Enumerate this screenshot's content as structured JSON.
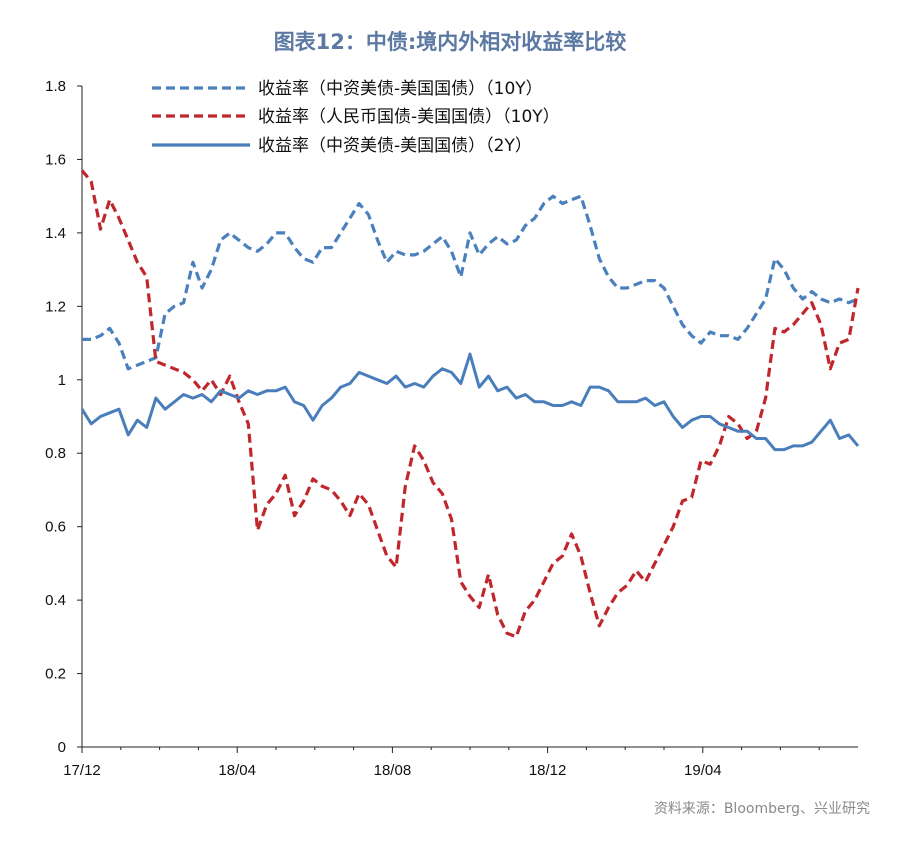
{
  "title": "图表12：中债:境内外相对收益率比较",
  "source": "资料来源：Bloomberg、兴业研究",
  "chart_data": {
    "type": "line",
    "xlabel": "",
    "ylabel": "",
    "ylim": [
      0,
      1.8
    ],
    "yticks": [
      "0",
      "0.2",
      "0.4",
      "0.6",
      "0.8",
      "1",
      "1.2",
      "1.4",
      "1.6",
      "1.8"
    ],
    "xticks": [
      "17/12",
      "18/04",
      "18/08",
      "18/12",
      "19/04"
    ],
    "grid": false,
    "legend_position": "top-left",
    "x_start": "2017-12",
    "x_end": "2019-08",
    "series": [
      {
        "name": "收益率（中资美债-美国国债）（10Y）",
        "color": "#4a80bd",
        "style": "dashed",
        "values": [
          1.11,
          1.11,
          1.12,
          1.14,
          1.1,
          1.03,
          1.04,
          1.05,
          1.06,
          1.18,
          1.2,
          1.21,
          1.32,
          1.25,
          1.3,
          1.38,
          1.4,
          1.38,
          1.36,
          1.35,
          1.37,
          1.4,
          1.4,
          1.36,
          1.33,
          1.32,
          1.36,
          1.36,
          1.4,
          1.44,
          1.48,
          1.45,
          1.38,
          1.32,
          1.35,
          1.34,
          1.34,
          1.35,
          1.37,
          1.39,
          1.35,
          1.28,
          1.4,
          1.34,
          1.37,
          1.39,
          1.37,
          1.38,
          1.42,
          1.44,
          1.48,
          1.5,
          1.48,
          1.49,
          1.5,
          1.42,
          1.33,
          1.28,
          1.25,
          1.25,
          1.26,
          1.27,
          1.27,
          1.25,
          1.2,
          1.15,
          1.12,
          1.1,
          1.13,
          1.12,
          1.12,
          1.11,
          1.14,
          1.18,
          1.22,
          1.33,
          1.3,
          1.25,
          1.22,
          1.24,
          1.22,
          1.21,
          1.22,
          1.21,
          1.22
        ]
      },
      {
        "name": "收益率（人民币国债-美国国债）（10Y）",
        "color": "#c0272d",
        "style": "dashed",
        "values": [
          1.57,
          1.54,
          1.41,
          1.49,
          1.44,
          1.38,
          1.32,
          1.28,
          1.05,
          1.04,
          1.03,
          1.02,
          1.0,
          0.97,
          1.0,
          0.96,
          1.01,
          0.94,
          0.88,
          0.59,
          0.66,
          0.69,
          0.74,
          0.63,
          0.67,
          0.73,
          0.71,
          0.7,
          0.67,
          0.63,
          0.69,
          0.66,
          0.59,
          0.52,
          0.49,
          0.71,
          0.82,
          0.78,
          0.72,
          0.69,
          0.62,
          0.45,
          0.41,
          0.38,
          0.47,
          0.36,
          0.31,
          0.3,
          0.37,
          0.4,
          0.45,
          0.5,
          0.52,
          0.58,
          0.52,
          0.42,
          0.33,
          0.38,
          0.42,
          0.44,
          0.48,
          0.45,
          0.5,
          0.55,
          0.6,
          0.67,
          0.68,
          0.78,
          0.77,
          0.82,
          0.9,
          0.88,
          0.84,
          0.86,
          0.95,
          1.14,
          1.13,
          1.15,
          1.18,
          1.21,
          1.15,
          1.03,
          1.1,
          1.11,
          1.25
        ]
      },
      {
        "name": "收益率（中资美债-美国国债）（2Y）",
        "color": "#4a7ebb",
        "style": "solid",
        "values": [
          0.92,
          0.88,
          0.9,
          0.91,
          0.92,
          0.85,
          0.89,
          0.87,
          0.95,
          0.92,
          0.94,
          0.96,
          0.95,
          0.96,
          0.94,
          0.97,
          0.96,
          0.95,
          0.97,
          0.96,
          0.97,
          0.97,
          0.98,
          0.94,
          0.93,
          0.89,
          0.93,
          0.95,
          0.98,
          0.99,
          1.02,
          1.01,
          1.0,
          0.99,
          1.01,
          0.98,
          0.99,
          0.98,
          1.01,
          1.03,
          1.02,
          0.99,
          1.07,
          0.98,
          1.01,
          0.97,
          0.98,
          0.95,
          0.96,
          0.94,
          0.94,
          0.93,
          0.93,
          0.94,
          0.93,
          0.98,
          0.98,
          0.97,
          0.94,
          0.94,
          0.94,
          0.95,
          0.93,
          0.94,
          0.9,
          0.87,
          0.89,
          0.9,
          0.9,
          0.88,
          0.87,
          0.86,
          0.86,
          0.84,
          0.84,
          0.81,
          0.81,
          0.82,
          0.82,
          0.83,
          0.86,
          0.89,
          0.84,
          0.85,
          0.82
        ]
      }
    ]
  }
}
